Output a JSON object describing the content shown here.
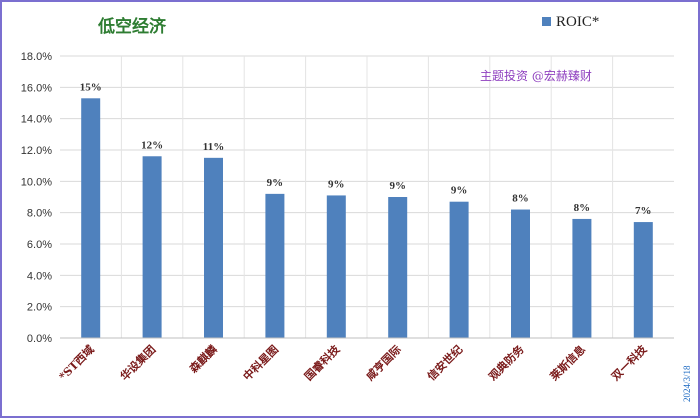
{
  "chart_data": {
    "type": "bar",
    "title": "低空经济",
    "series": [
      {
        "name": "ROIC*",
        "values": [
          15.3,
          11.6,
          11.5,
          9.2,
          9.1,
          9.0,
          8.7,
          8.2,
          7.6,
          7.4
        ],
        "color": "#4f81bd"
      }
    ],
    "categories": [
      "*ST西域",
      "华设集团",
      "森麒麟",
      "中科星图",
      "国睿科技",
      "咸亨国际",
      "信安世纪",
      "观典防务",
      "莱斯信息",
      "双一科技"
    ],
    "data_labels": [
      "15%",
      "12%",
      "11%",
      "9%",
      "9%",
      "9%",
      "9%",
      "8%",
      "8%",
      "7%"
    ],
    "y_ticks": [
      "0.0%",
      "2.0%",
      "4.0%",
      "6.0%",
      "8.0%",
      "10.0%",
      "12.0%",
      "14.0%",
      "16.0%",
      "18.0%"
    ],
    "ylim": [
      0,
      18
    ],
    "grid": true,
    "legend_position": "top-right",
    "annotation": "主题投资 @宏赫臻财",
    "date_stamp": "2024/3/18"
  }
}
